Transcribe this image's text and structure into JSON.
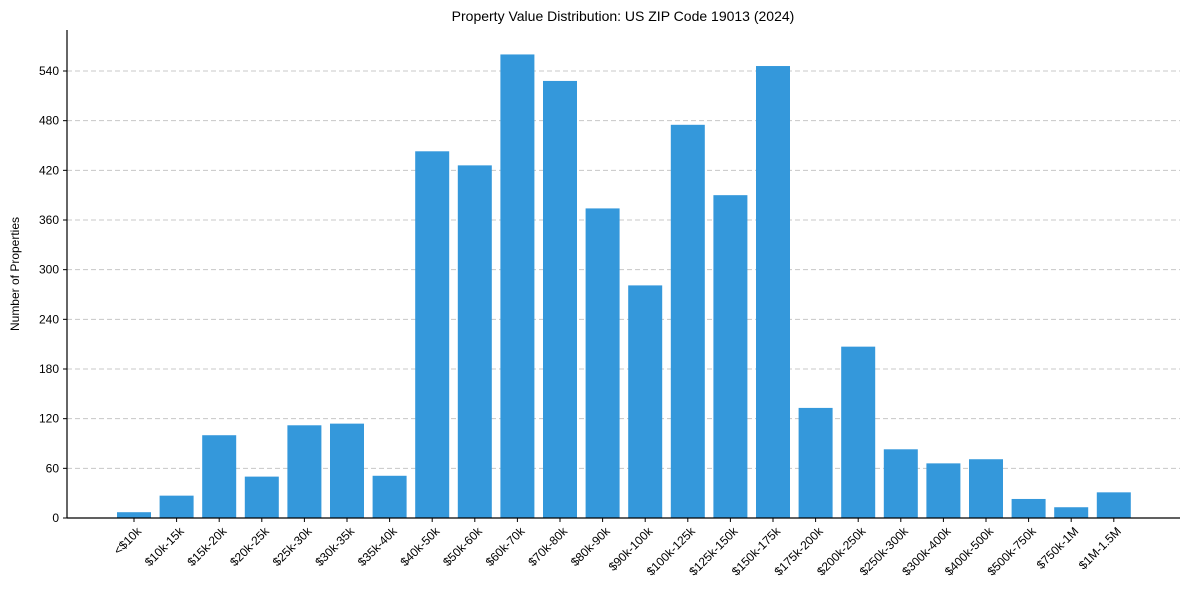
{
  "chart_data": {
    "type": "bar",
    "title": "Property Value Distribution: US ZIP Code 19013 (2024)",
    "xlabel": "",
    "ylabel": "Number of Properties",
    "ylim": [
      0,
      590
    ],
    "yticks": [
      0,
      60,
      120,
      180,
      240,
      300,
      360,
      420,
      480,
      540
    ],
    "grid": {
      "axis": "y",
      "style": "dashed",
      "color": "#c8c8c8"
    },
    "bar_color": "#3498db",
    "categories": [
      "<$10k",
      "$10k-15k",
      "$15k-20k",
      "$20k-25k",
      "$25k-30k",
      "$30k-35k",
      "$35k-40k",
      "$40k-50k",
      "$50k-60k",
      "$60k-70k",
      "$70k-80k",
      "$80k-90k",
      "$90k-100k",
      "$100k-125k",
      "$125k-150k",
      "$150k-175k",
      "$175k-200k",
      "$200k-250k",
      "$250k-300k",
      "$300k-400k",
      "$400k-500k",
      "$500k-750k",
      "$750k-1M",
      "$1M-1.5M"
    ],
    "values": [
      7,
      27,
      100,
      50,
      112,
      114,
      51,
      443,
      426,
      560,
      528,
      374,
      281,
      475,
      390,
      546,
      133,
      207,
      83,
      66,
      71,
      23,
      13,
      31
    ],
    "legend": null
  }
}
